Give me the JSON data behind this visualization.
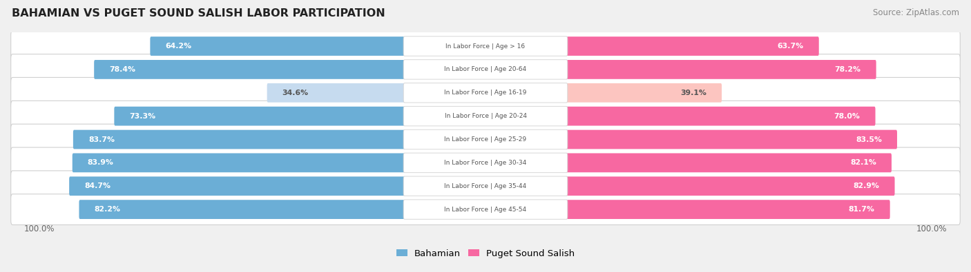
{
  "title": "BAHAMIAN VS PUGET SOUND SALISH LABOR PARTICIPATION",
  "source": "Source: ZipAtlas.com",
  "categories": [
    "In Labor Force | Age > 16",
    "In Labor Force | Age 20-64",
    "In Labor Force | Age 16-19",
    "In Labor Force | Age 20-24",
    "In Labor Force | Age 25-29",
    "In Labor Force | Age 30-34",
    "In Labor Force | Age 35-44",
    "In Labor Force | Age 45-54"
  ],
  "bahamian_values": [
    64.2,
    78.4,
    34.6,
    73.3,
    83.7,
    83.9,
    84.7,
    82.2
  ],
  "puget_values": [
    63.7,
    78.2,
    39.1,
    78.0,
    83.5,
    82.1,
    82.9,
    81.7
  ],
  "bahamian_color": "#6baed6",
  "bahamian_light_color": "#c6dbef",
  "puget_color": "#f768a1",
  "puget_light_color": "#fcc5c0",
  "label_white": "#ffffff",
  "label_dark": "#555555",
  "background_color": "#f0f0f0",
  "row_bg_color": "#ffffff",
  "row_border_color": "#d0d0d0",
  "center_label_bg": "#ffffff",
  "center_label_border": "#d8d8d8",
  "center_label_text": "#555555",
  "legend_bahamian": "Bahamian",
  "legend_puget": "Puget Sound Salish",
  "bottom_label": "100.0%"
}
